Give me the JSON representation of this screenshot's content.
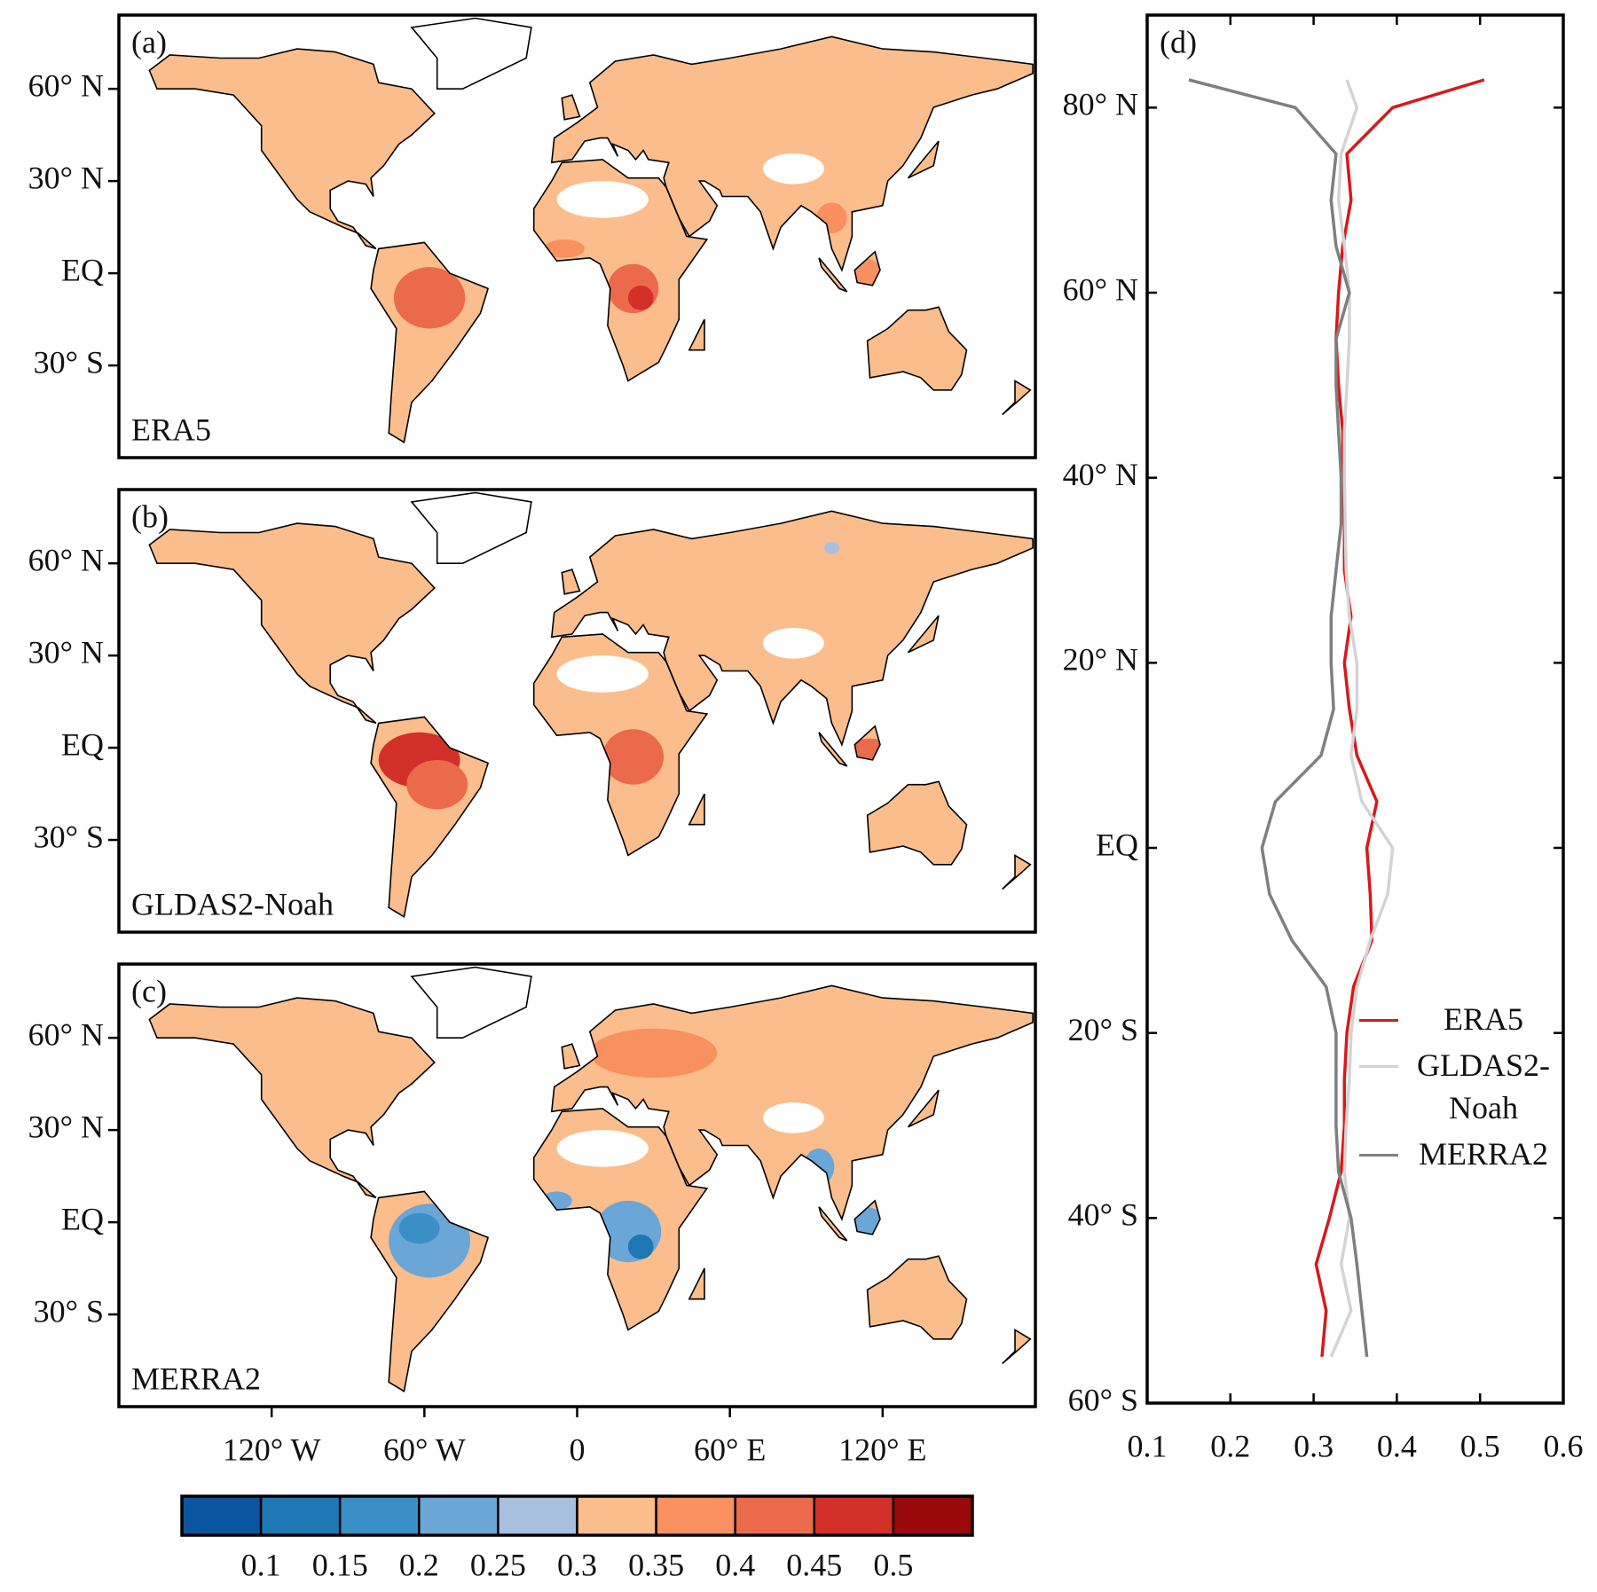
{
  "chart_data": [
    {
      "type": "map",
      "panel": "(a)",
      "label": "ERA5",
      "xlim": [
        -180,
        180
      ],
      "ylim": [
        -60,
        84
      ],
      "yticks": [
        {
          "value": 60,
          "label": "60° N"
        },
        {
          "value": 30,
          "label": "30° N"
        },
        {
          "value": 0,
          "label": "EQ"
        },
        {
          "value": -30,
          "label": "30° S"
        }
      ]
    },
    {
      "type": "map",
      "panel": "(b)",
      "label": "GLDAS2-Noah",
      "xlim": [
        -180,
        180
      ],
      "ylim": [
        -60,
        84
      ],
      "yticks": [
        {
          "value": 60,
          "label": "60° N"
        },
        {
          "value": 30,
          "label": "30° N"
        },
        {
          "value": 0,
          "label": "EQ"
        },
        {
          "value": -30,
          "label": "30° S"
        }
      ]
    },
    {
      "type": "map",
      "panel": "(c)",
      "label": "MERRA2",
      "xlim": [
        -180,
        180
      ],
      "ylim": [
        -60,
        84
      ],
      "yticks": [
        {
          "value": 60,
          "label": "60° N"
        },
        {
          "value": 30,
          "label": "30° N"
        },
        {
          "value": 0,
          "label": "EQ"
        },
        {
          "value": -30,
          "label": "30° S"
        }
      ],
      "xticks": [
        {
          "value": -120,
          "label": "120° W"
        },
        {
          "value": -60,
          "label": "60° W"
        },
        0,
        {
          "value": 60,
          "label": "60° E"
        },
        {
          "value": 120,
          "label": "120° E"
        }
      ]
    },
    {
      "type": "line",
      "panel": "(d)",
      "legend": "right",
      "y": [
        83,
        80,
        75,
        70,
        65,
        60,
        55,
        50,
        45,
        40,
        35,
        30,
        25,
        20,
        15,
        10,
        5,
        0,
        -5,
        -10,
        -15,
        -20,
        -25,
        -30,
        -35,
        -40,
        -45,
        -50,
        -55
      ],
      "ylim": [
        -60,
        90
      ],
      "yticks": [
        {
          "value": 80,
          "label": "80° N"
        },
        {
          "value": 60,
          "label": "60° N"
        },
        {
          "value": 40,
          "label": "40° N"
        },
        {
          "value": 20,
          "label": "20° N"
        },
        {
          "value": 0,
          "label": "EQ"
        },
        {
          "value": -20,
          "label": "20° S"
        },
        {
          "value": -40,
          "label": "40° S"
        },
        {
          "value": -60,
          "label": "60° S"
        }
      ],
      "xlim": [
        0.1,
        0.6
      ],
      "xticks": [
        0.1,
        0.2,
        0.3,
        0.4,
        0.5,
        0.6
      ],
      "series": [
        {
          "name": "ERA5",
          "color": "#d7191c",
          "values": [
            0.505,
            0.395,
            0.34,
            0.345,
            0.335,
            0.33,
            0.327,
            0.33,
            0.335,
            0.335,
            0.337,
            0.337,
            0.345,
            0.337,
            0.343,
            0.352,
            0.376,
            0.364,
            0.368,
            0.37,
            0.348,
            0.34,
            0.337,
            0.337,
            0.333,
            0.319,
            0.303,
            0.315,
            0.31
          ]
        },
        {
          "name": "GLDAS2-Noah",
          "color": "#d4d4d4",
          "values": [
            0.34,
            0.352,
            0.333,
            0.33,
            0.337,
            0.343,
            0.343,
            0.34,
            0.337,
            0.337,
            0.338,
            0.339,
            0.343,
            0.352,
            0.352,
            0.345,
            0.358,
            0.395,
            0.389,
            0.368,
            0.352,
            0.345,
            0.343,
            0.339,
            0.337,
            0.343,
            0.333,
            0.345,
            0.321
          ]
        },
        {
          "name": "MERRA2",
          "color": "#7f7f7f",
          "values": [
            0.15,
            0.278,
            0.327,
            0.321,
            0.327,
            0.343,
            0.327,
            0.327,
            0.33,
            0.333,
            0.333,
            0.327,
            0.321,
            0.321,
            0.324,
            0.309,
            0.254,
            0.238,
            0.247,
            0.274,
            0.315,
            0.327,
            0.327,
            0.327,
            0.33,
            0.345,
            0.352,
            0.358,
            0.364
          ]
        }
      ]
    }
  ],
  "colorbar": {
    "colors": [
      "#0b559f",
      "#1f77b4",
      "#3a8fc6",
      "#6aa6d6",
      "#a9bfe0",
      "#fbbd8b",
      "#f8915f",
      "#ec6a4c",
      "#d3302a",
      "#9b0a0a"
    ],
    "lim": [
      0.05,
      0.55
    ],
    "ticks": [
      0.1,
      0.15,
      0.2,
      0.25,
      0.3,
      0.35,
      0.4,
      0.45,
      0.5
    ]
  }
}
